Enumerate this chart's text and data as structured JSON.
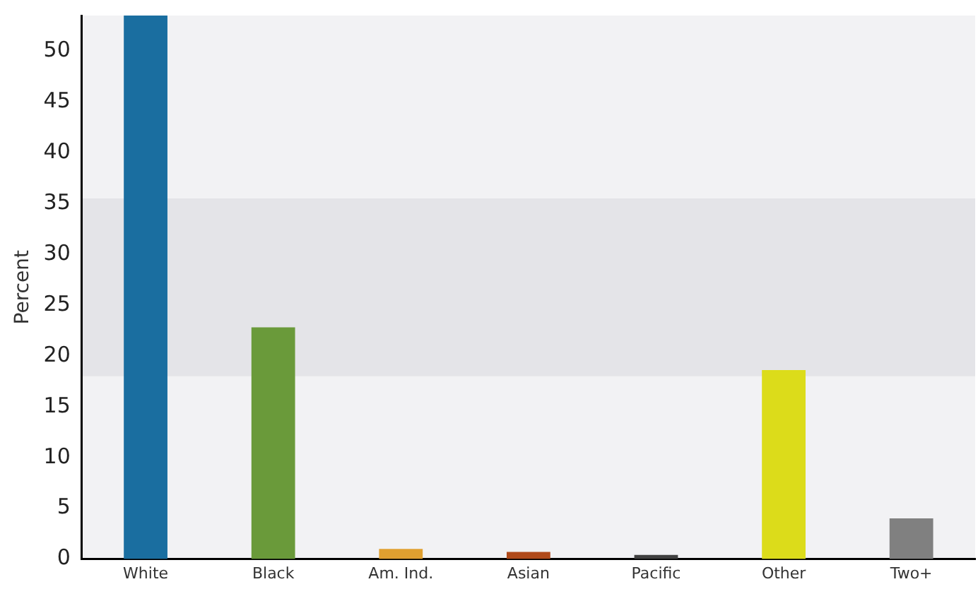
{
  "chart_data": {
    "type": "bar",
    "ylabel": "Percent",
    "categories": [
      "White",
      "Black",
      "Am. Ind.",
      "Asian",
      "Pacific",
      "Other",
      "Two+"
    ],
    "values": [
      53.5,
      22.8,
      1.0,
      0.7,
      0.4,
      18.6,
      4.0
    ],
    "colors": [
      "#1a6ea0",
      "#6a9a3a",
      "#e0a030",
      "#b04a1a",
      "#404040",
      "#dcdc1a",
      "#808080"
    ],
    "ylim": [
      0,
      53.5
    ],
    "yticks": [
      0,
      5,
      10,
      15,
      20,
      25,
      30,
      35,
      40,
      45,
      50
    ],
    "bands": [
      {
        "axis": "y",
        "from": 18,
        "to": 35.5,
        "color": "#e4e4e8"
      }
    ],
    "grid": false,
    "legend": false
  }
}
